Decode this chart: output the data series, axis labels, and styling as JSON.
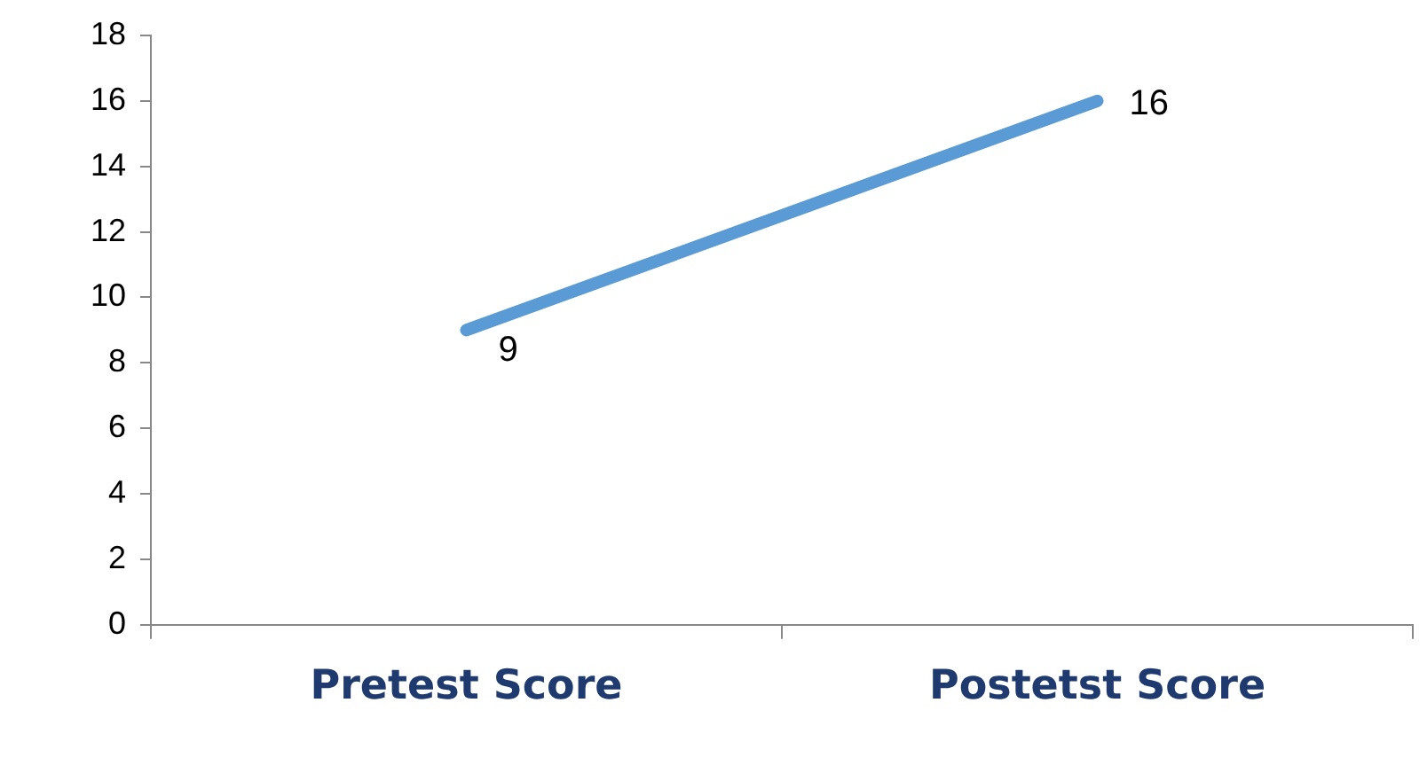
{
  "chart_data": {
    "type": "line",
    "categories": [
      "Pretest Score",
      "Postetst Score"
    ],
    "series": [
      {
        "color": "#5b9bd5",
        "values": [
          9,
          16
        ]
      }
    ],
    "ylim": [
      0,
      18
    ],
    "yticks": [
      0,
      2,
      4,
      6,
      8,
      10,
      12,
      14,
      16,
      18
    ],
    "grid": false,
    "legend": false,
    "marker": "none",
    "data_labels": true
  }
}
